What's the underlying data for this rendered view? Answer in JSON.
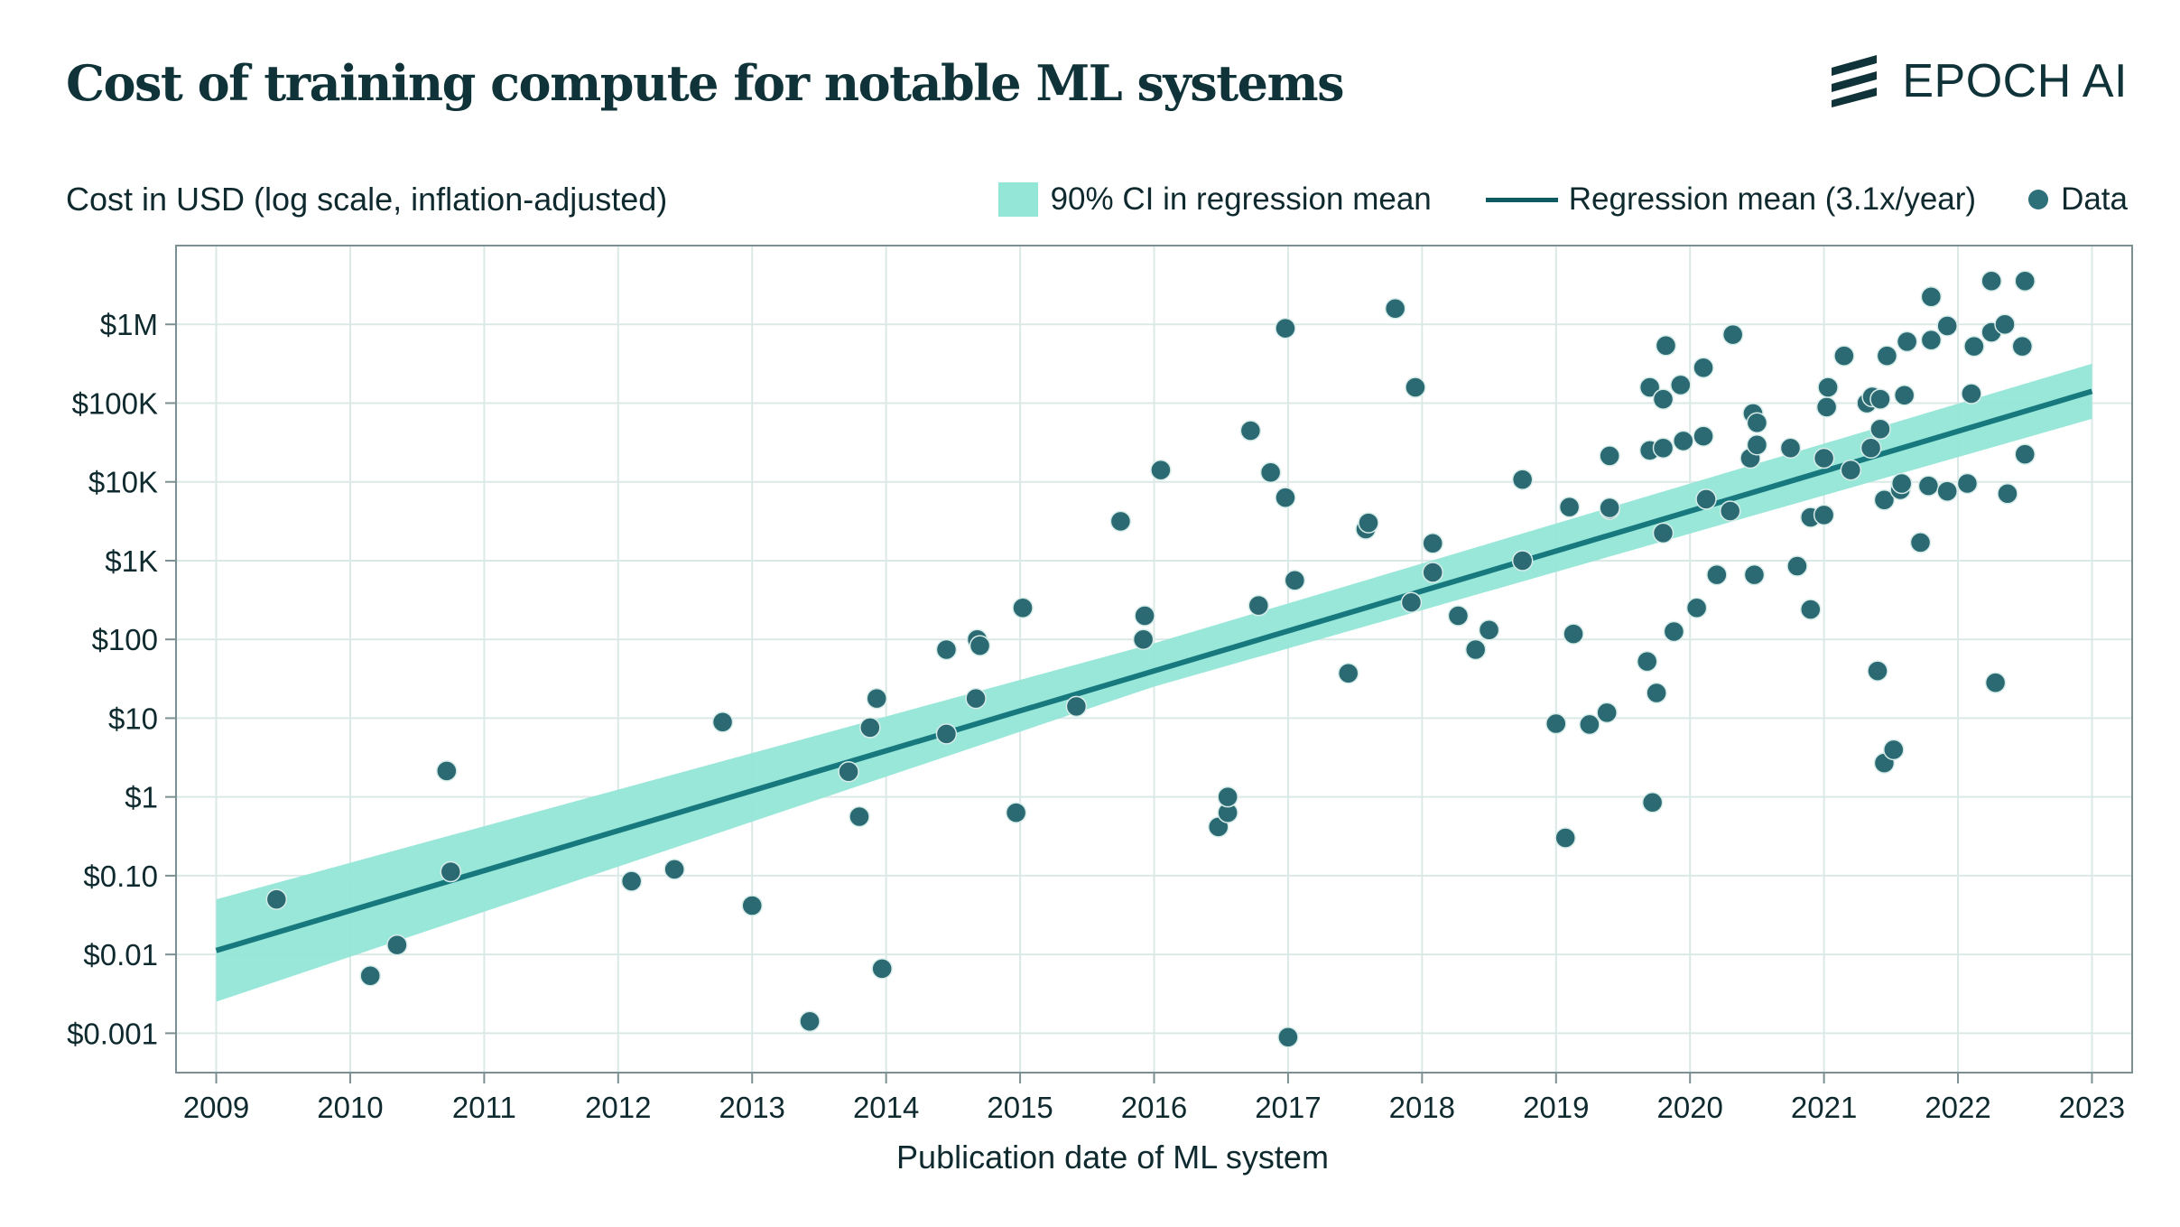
{
  "title": "Cost of training compute for notable ML systems",
  "brand": {
    "name": "EPOCH AI",
    "icon": "epoch-logo-icon"
  },
  "colors": {
    "ci_band": "#94e6d7",
    "regression_line": "#17787e",
    "point": "#2b6a72",
    "point_edge": "#d7ece9",
    "grid": "#dbe9e6",
    "frame": "#7c8f92"
  },
  "chart_data": {
    "type": "scatter",
    "title": "Cost of training compute for notable ML systems",
    "ylabel": "Cost in USD (log scale, inflation-adjusted)",
    "xlabel": "Publication date of ML system",
    "y_scale": "log10",
    "xlim": [
      2008.7,
      2023.3
    ],
    "ylim_log10": [
      -3.5,
      7.0
    ],
    "x_ticks": [
      2009,
      2010,
      2011,
      2012,
      2013,
      2014,
      2015,
      2016,
      2017,
      2018,
      2019,
      2020,
      2021,
      2022,
      2023
    ],
    "x_tick_labels": [
      "2009",
      "2010",
      "2011",
      "2012",
      "2013",
      "2014",
      "2015",
      "2016",
      "2017",
      "2018",
      "2019",
      "2020",
      "2021",
      "2022",
      "2023"
    ],
    "y_ticks_log10": [
      -3,
      -2,
      -1,
      0,
      1,
      2,
      3,
      4,
      5,
      6
    ],
    "y_tick_labels": [
      "$0.001",
      "$0.01",
      "$0.10",
      "$1",
      "$10",
      "$100",
      "$1K",
      "$10K",
      "$100K",
      "$1M"
    ],
    "grid": true,
    "legend": {
      "position": "top-right",
      "entries": [
        "90% CI in regression mean",
        "Regression mean (3.1x/year)",
        "Data"
      ]
    },
    "regression": {
      "label": "Regression mean (3.1x/year)",
      "x": [
        2009,
        2023
      ],
      "log10_y": [
        -1.95,
        5.15
      ]
    },
    "ci_band": {
      "label": "90% CI in regression mean",
      "x": [
        2009,
        2016,
        2023
      ],
      "log10_lower": [
        -2.6,
        1.4,
        4.8
      ],
      "log10_upper": [
        -1.3,
        1.95,
        5.5
      ]
    },
    "points": [
      [
        2009.45,
        -1.3
      ],
      [
        2010.15,
        -2.27
      ],
      [
        2010.35,
        -1.88
      ],
      [
        2010.72,
        0.33
      ],
      [
        2010.75,
        -0.95
      ],
      [
        2012.1,
        -1.07
      ],
      [
        2012.42,
        -0.92
      ],
      [
        2012.78,
        0.95
      ],
      [
        2013.0,
        -1.38
      ],
      [
        2013.43,
        -2.85
      ],
      [
        2013.72,
        0.32
      ],
      [
        2013.8,
        -0.25
      ],
      [
        2013.88,
        0.88
      ],
      [
        2013.93,
        1.25
      ],
      [
        2013.97,
        -2.18
      ],
      [
        2014.45,
        0.8
      ],
      [
        2014.45,
        1.87
      ],
      [
        2014.67,
        1.25
      ],
      [
        2014.68,
        2.0
      ],
      [
        2014.7,
        1.92
      ],
      [
        2014.97,
        -0.2
      ],
      [
        2015.02,
        2.4
      ],
      [
        2015.42,
        1.15
      ],
      [
        2015.75,
        3.5
      ],
      [
        2015.92,
        2.0
      ],
      [
        2015.93,
        2.3
      ],
      [
        2016.05,
        4.15
      ],
      [
        2016.48,
        -0.38
      ],
      [
        2016.55,
        -0.2
      ],
      [
        2016.55,
        0.0
      ],
      [
        2016.72,
        4.65
      ],
      [
        2016.78,
        2.43
      ],
      [
        2016.87,
        4.12
      ],
      [
        2016.98,
        3.8
      ],
      [
        2016.98,
        5.95
      ],
      [
        2017.0,
        -3.05
      ],
      [
        2017.05,
        2.75
      ],
      [
        2017.45,
        1.57
      ],
      [
        2017.58,
        3.4
      ],
      [
        2017.6,
        3.48
      ],
      [
        2017.8,
        6.2
      ],
      [
        2017.92,
        2.47
      ],
      [
        2017.95,
        5.2
      ],
      [
        2018.08,
        2.85
      ],
      [
        2018.08,
        3.22
      ],
      [
        2018.27,
        2.3
      ],
      [
        2018.4,
        1.87
      ],
      [
        2018.5,
        2.12
      ],
      [
        2018.75,
        4.03
      ],
      [
        2018.75,
        3.0
      ],
      [
        2019.0,
        0.93
      ],
      [
        2019.07,
        -0.52
      ],
      [
        2019.1,
        3.68
      ],
      [
        2019.13,
        2.07
      ],
      [
        2019.25,
        0.92
      ],
      [
        2019.38,
        1.07
      ],
      [
        2019.4,
        4.33
      ],
      [
        2019.4,
        3.65
      ],
      [
        2019.4,
        3.67
      ],
      [
        2019.68,
        1.72
      ],
      [
        2019.7,
        5.2
      ],
      [
        2019.7,
        4.4
      ],
      [
        2019.72,
        -0.07
      ],
      [
        2019.75,
        1.32
      ],
      [
        2019.8,
        3.35
      ],
      [
        2019.8,
        4.43
      ],
      [
        2019.8,
        5.05
      ],
      [
        2019.82,
        5.73
      ],
      [
        2019.88,
        2.1
      ],
      [
        2019.93,
        5.23
      ],
      [
        2019.95,
        4.52
      ],
      [
        2020.05,
        2.4
      ],
      [
        2020.1,
        4.58
      ],
      [
        2020.1,
        5.45
      ],
      [
        2020.12,
        3.78
      ],
      [
        2020.2,
        2.82
      ],
      [
        2020.3,
        3.63
      ],
      [
        2020.32,
        5.87
      ],
      [
        2020.45,
        4.3
      ],
      [
        2020.47,
        4.87
      ],
      [
        2020.48,
        2.82
      ],
      [
        2020.5,
        4.47
      ],
      [
        2020.5,
        4.75
      ],
      [
        2020.75,
        4.43
      ],
      [
        2020.8,
        2.93
      ],
      [
        2020.9,
        3.55
      ],
      [
        2020.9,
        2.38
      ],
      [
        2021.0,
        3.58
      ],
      [
        2021.0,
        4.3
      ],
      [
        2021.02,
        4.95
      ],
      [
        2021.03,
        5.2
      ],
      [
        2021.15,
        5.6
      ],
      [
        2021.2,
        4.15
      ],
      [
        2021.32,
        5.0
      ],
      [
        2021.35,
        4.43
      ],
      [
        2021.36,
        5.08
      ],
      [
        2021.4,
        1.6
      ],
      [
        2021.42,
        4.67
      ],
      [
        2021.42,
        5.05
      ],
      [
        2021.45,
        3.77
      ],
      [
        2021.45,
        0.43
      ],
      [
        2021.47,
        5.6
      ],
      [
        2021.52,
        0.6
      ],
      [
        2021.57,
        3.9
      ],
      [
        2021.58,
        3.98
      ],
      [
        2021.6,
        5.1
      ],
      [
        2021.62,
        5.78
      ],
      [
        2021.72,
        3.23
      ],
      [
        2021.78,
        3.95
      ],
      [
        2021.8,
        6.35
      ],
      [
        2021.8,
        5.8
      ],
      [
        2021.92,
        3.88
      ],
      [
        2021.92,
        5.98
      ],
      [
        2022.07,
        3.98
      ],
      [
        2022.1,
        5.12
      ],
      [
        2022.12,
        5.72
      ],
      [
        2022.25,
        5.9
      ],
      [
        2022.25,
        6.55
      ],
      [
        2022.28,
        1.45
      ],
      [
        2022.35,
        6.0
      ],
      [
        2022.37,
        3.85
      ],
      [
        2022.48,
        5.72
      ],
      [
        2022.5,
        6.55
      ],
      [
        2022.5,
        4.35
      ]
    ]
  }
}
